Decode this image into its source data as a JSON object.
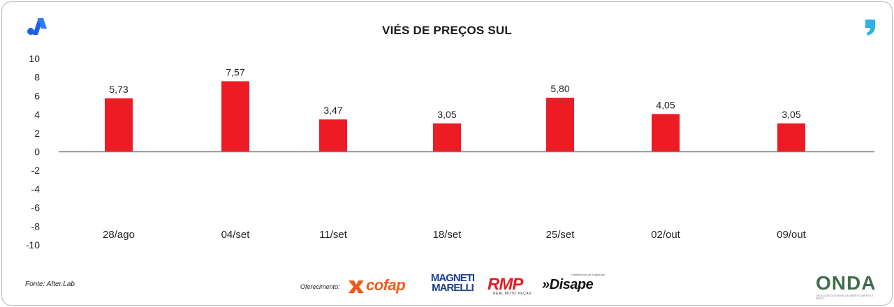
{
  "chart_data": {
    "type": "bar",
    "title": "VIÉS DE PREÇOS SUL",
    "categories": [
      "28/ago",
      "04/set",
      "11/set",
      "18/set",
      "25/set",
      "02/out",
      "09/out"
    ],
    "values": [
      5.73,
      7.57,
      3.47,
      3.05,
      5.8,
      4.05,
      3.05
    ],
    "value_labels": [
      "5,73",
      "7,57",
      "3,47",
      "3,05",
      "5,80",
      "4,05",
      "3,05"
    ],
    "yticks": [
      10,
      8,
      6,
      4,
      2,
      0,
      -2,
      -4,
      -6,
      -8,
      -10
    ],
    "ytick_labels": [
      "10",
      "8",
      "6",
      "4",
      "2",
      "0",
      "-2",
      "-4",
      "-6",
      "-8",
      "-10"
    ],
    "ylim": [
      -10,
      10
    ],
    "bar_color": "#ed1c24",
    "grid": false,
    "xlabel": "",
    "ylabel": ""
  },
  "footer": {
    "source": "Fonte: After.Lab",
    "offer_label": "Oferecimento:",
    "sponsors": {
      "cofap": "cofap",
      "magneti_line1": "MAGNETI",
      "magneti_line2": "MARELLI",
      "rmp": "RMP",
      "rmp_sub": "REAL MOTO PEÇAS",
      "disape": "»Disape",
      "disape_sub": "Distribuidora de Autopeças",
      "onda": "ONDA",
      "onda_sub": "OSCILAÇÃO DOS NÍVEIS DE AMORTECIMENTO E PREÇO"
    }
  },
  "icons": {
    "top_left": "brand-a-logo-icon",
    "top_right": "comma-logo-icon"
  }
}
